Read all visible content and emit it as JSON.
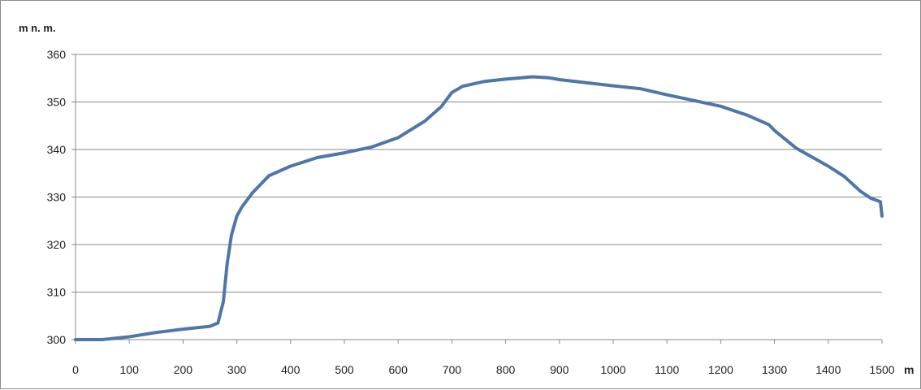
{
  "chart_data": {
    "type": "line",
    "title": "",
    "xlabel": "m",
    "ylabel": "m n. m.",
    "xlim": [
      0,
      1500
    ],
    "ylim": [
      300,
      360
    ],
    "x_ticks": [
      "0",
      "100",
      "200",
      "300",
      "400",
      "500",
      "600",
      "700",
      "800",
      "900",
      "1000",
      "1100",
      "1200",
      "1300",
      "1400",
      "1500"
    ],
    "y_ticks": [
      "300",
      "310",
      "320",
      "330",
      "340",
      "350",
      "360"
    ],
    "grid": "horizontal",
    "legend": "none",
    "series": [
      {
        "color": "#4f76a8",
        "x": [
          0,
          50,
          100,
          150,
          200,
          250,
          265,
          275,
          282,
          290,
          300,
          310,
          330,
          360,
          400,
          450,
          500,
          550,
          600,
          650,
          680,
          700,
          720,
          760,
          800,
          850,
          880,
          900,
          1000,
          1050,
          1100,
          1150,
          1200,
          1250,
          1290,
          1300,
          1340,
          1400,
          1430,
          1460,
          1480,
          1497,
          1500
        ],
        "values": [
          300,
          300,
          300.6,
          301.5,
          302.2,
          302.8,
          303.5,
          308,
          316,
          322,
          326,
          328,
          331,
          334.5,
          336.5,
          338.3,
          339.3,
          340.5,
          342.5,
          346,
          349,
          352,
          353.3,
          354.3,
          354.8,
          355.3,
          355.1,
          354.7,
          353.4,
          352.8,
          351.5,
          350.3,
          349.1,
          347.2,
          345.2,
          344,
          340.3,
          336.5,
          334.3,
          331.2,
          329.7,
          329,
          326
        ]
      }
    ]
  }
}
